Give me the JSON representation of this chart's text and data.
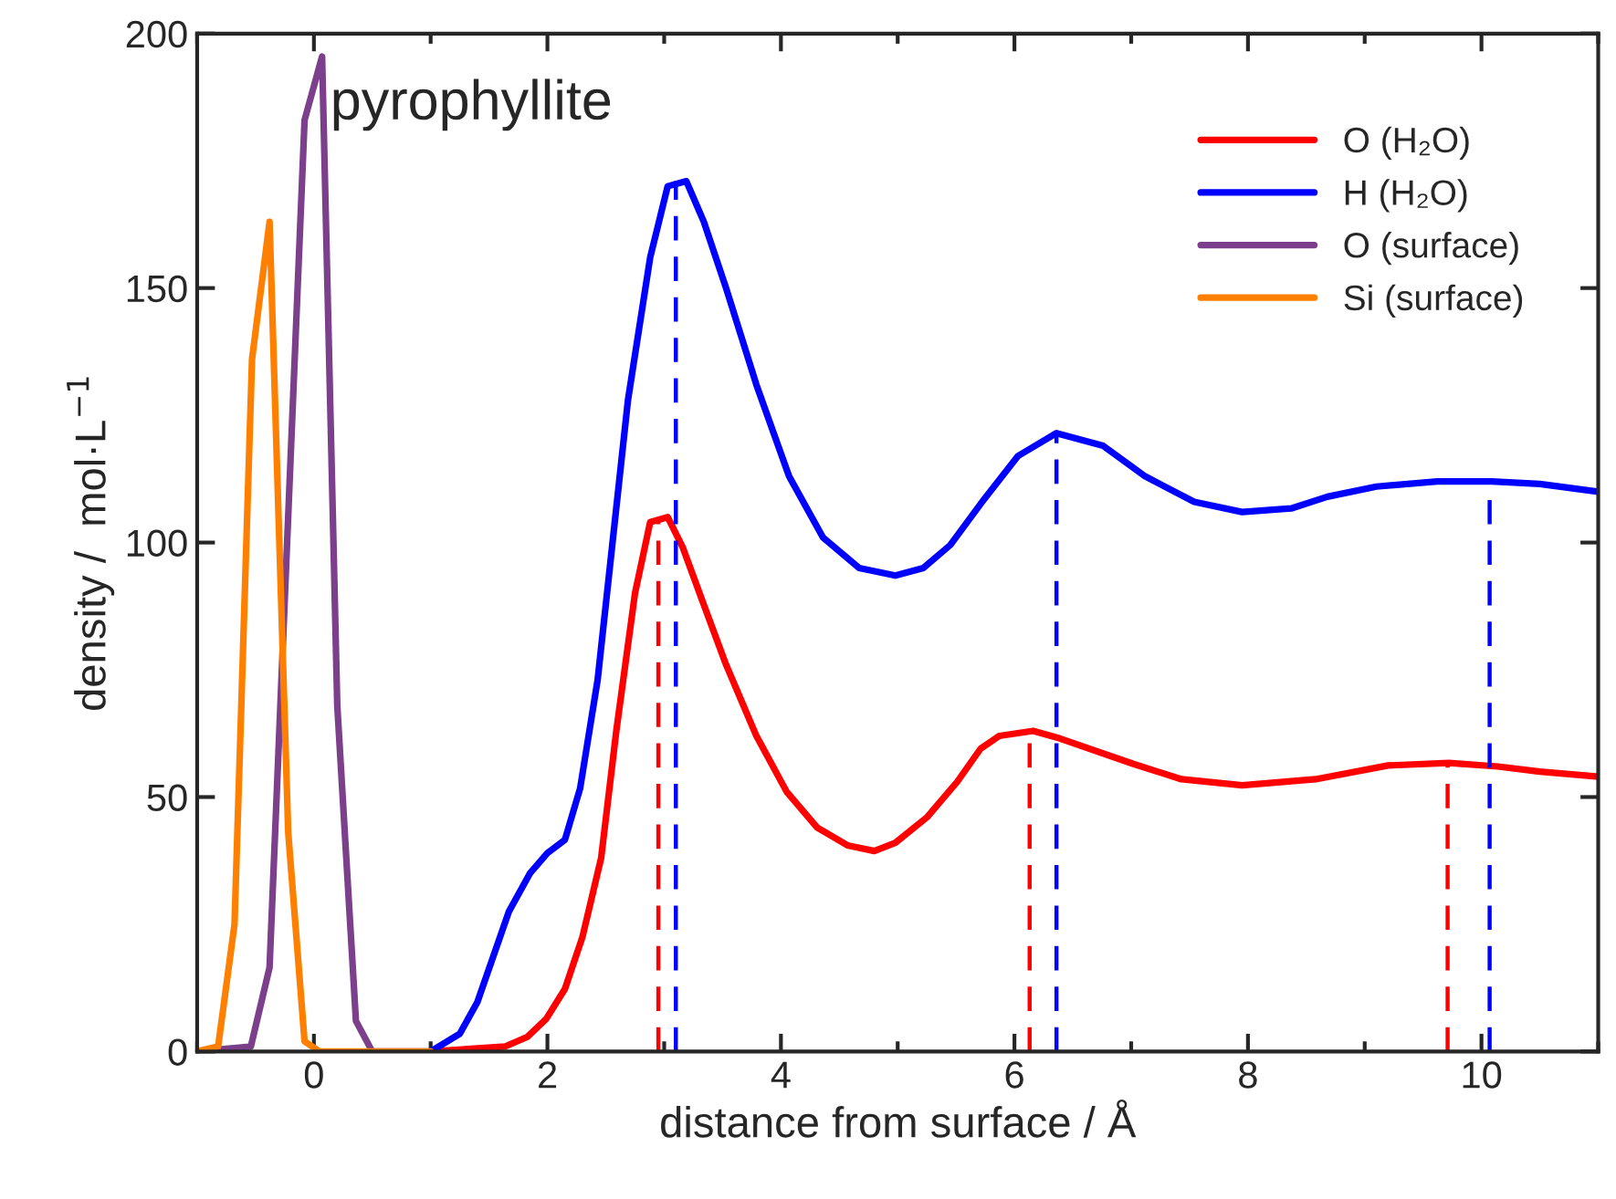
{
  "chart_data": {
    "type": "line",
    "title": "pyrophyllite",
    "xlabel": "distance from surface / Å",
    "ylabel": "density /  mol·L$^{−1}$",
    "xlim": [
      -1,
      11
    ],
    "ylim": [
      0,
      200
    ],
    "xticks": [
      0,
      2,
      4,
      6,
      8,
      10
    ],
    "yticks": [
      0,
      50,
      100,
      150,
      200
    ],
    "grid": false,
    "legend": "top right",
    "marker": "none",
    "line_style": "solid",
    "series": [
      {
        "name": "O (H₂O)",
        "color": "#ff0000",
        "x": [
          1.0,
          1.64,
          1.83,
          1.99,
          2.15,
          2.3,
          2.46,
          2.59,
          2.75,
          2.88,
          3.03,
          3.16,
          3.32,
          3.53,
          3.79,
          4.05,
          4.31,
          4.57,
          4.8,
          4.98,
          5.25,
          5.51,
          5.71,
          5.87,
          6.16,
          6.39,
          7.02,
          7.43,
          7.95,
          8.58,
          9.2,
          9.72,
          10.14,
          10.5,
          11.0
        ],
        "values": [
          0,
          1,
          2.9,
          6.4,
          12.3,
          22.5,
          38,
          63,
          90,
          104,
          105,
          99,
          89,
          76,
          62,
          51,
          44,
          40.5,
          39.4,
          41,
          46,
          53,
          59.5,
          62,
          63,
          61.5,
          56.5,
          53.5,
          52.3,
          53.5,
          56.2,
          56.7,
          56,
          55,
          54
        ]
      },
      {
        "name": "H (H₂O)",
        "color": "#0000ff",
        "x": [
          1.0,
          1.25,
          1.4,
          1.67,
          1.85,
          2.0,
          2.15,
          2.28,
          2.43,
          2.69,
          2.88,
          3.03,
          3.19,
          3.34,
          3.53,
          3.79,
          4.07,
          4.36,
          4.67,
          4.98,
          5.22,
          5.45,
          5.74,
          6.03,
          6.36,
          6.76,
          7.12,
          7.54,
          7.95,
          8.37,
          8.68,
          9.1,
          9.62,
          10.09,
          10.5,
          11.0
        ],
        "values": [
          0,
          3.5,
          9.7,
          27.5,
          35,
          39,
          41.6,
          51.7,
          73,
          128,
          156,
          170,
          171,
          163,
          150,
          131,
          113,
          101,
          95,
          93.5,
          95,
          99.5,
          108.5,
          117,
          121.5,
          119,
          113,
          108,
          106,
          106.7,
          109,
          111,
          112,
          112,
          111.5,
          110
        ]
      },
      {
        "name": "O (surface)",
        "color": "#7b3f8c",
        "x": [
          -1.0,
          -0.54,
          -0.38,
          -0.08,
          0.07,
          0.2,
          0.36,
          0.5,
          1.0
        ],
        "values": [
          0,
          1,
          16.5,
          183,
          195.5,
          68,
          6,
          0,
          0
        ]
      },
      {
        "name": "Si (surface)",
        "color": "#ff8000",
        "x": [
          -1.0,
          -0.82,
          -0.68,
          -0.53,
          -0.38,
          -0.22,
          -0.08,
          0.05,
          1.0
        ],
        "values": [
          0,
          1,
          25,
          136,
          163,
          43,
          2,
          0,
          0
        ]
      },
      {
        "color": "#ff0000",
        "line_style": "dashed",
        "x": [
          2.95,
          2.95
        ],
        "values": [
          0,
          105
        ]
      },
      {
        "color": "#0000ff",
        "line_style": "dashed",
        "x": [
          3.1,
          3.1
        ],
        "values": [
          0,
          171
        ]
      },
      {
        "color": "#ff0000",
        "line_style": "dashed",
        "x": [
          6.13,
          6.13
        ],
        "values": [
          0,
          63
        ]
      },
      {
        "color": "#0000ff",
        "line_style": "dashed",
        "x": [
          6.36,
          6.36
        ],
        "values": [
          0,
          121.5
        ]
      },
      {
        "color": "#ff0000",
        "line_style": "dashed",
        "x": [
          9.71,
          9.71
        ],
        "values": [
          0,
          56.7
        ]
      },
      {
        "color": "#0000ff",
        "line_style": "dashed",
        "x": [
          10.07,
          10.07
        ],
        "values": [
          0,
          112
        ]
      }
    ]
  }
}
